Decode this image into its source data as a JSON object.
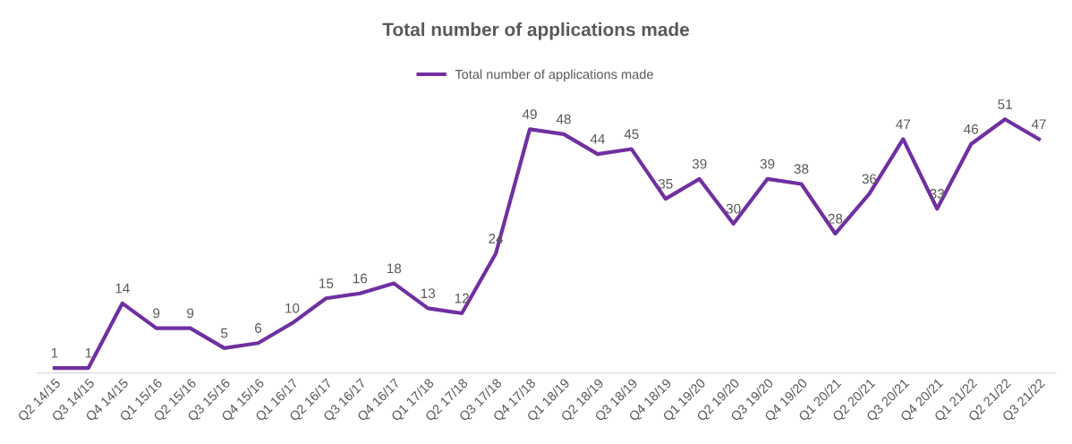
{
  "chart_data": {
    "type": "line",
    "title": "Total number of applications made",
    "categories": [
      "Q2 14/15",
      "Q3 14/15",
      "Q4 14/15",
      "Q1 15/16",
      "Q2 15/16",
      "Q3 15/16",
      "Q4 15/16",
      "Q1 16/17",
      "Q2 16/17",
      "Q3 16/17",
      "Q4 16/17",
      "Q1 17/18",
      "Q2 17/18",
      "Q3 17/18",
      "Q4 17/18",
      "Q1 18/19",
      "Q2 18/19",
      "Q3 18/19",
      "Q4 18/19",
      "Q1 19/20",
      "Q2 19/20",
      "Q3 19/20",
      "Q4 19/20",
      "Q1 20/21",
      "Q2 20/21",
      "Q3 20/21",
      "Q4 20/21",
      "Q1 21/22",
      "Q2 21/22",
      "Q3 21/22"
    ],
    "series": [
      {
        "name": "Total number of applications made",
        "color": "#7030a0",
        "values": [
          1,
          1,
          14,
          9,
          9,
          5,
          6,
          10,
          15,
          16,
          18,
          13,
          12,
          24,
          49,
          48,
          44,
          45,
          35,
          39,
          30,
          39,
          38,
          28,
          36,
          47,
          33,
          46,
          51,
          47
        ]
      }
    ],
    "data_labels": true,
    "legend": "top",
    "grid": false,
    "marker": "none",
    "line_style": "solid"
  }
}
